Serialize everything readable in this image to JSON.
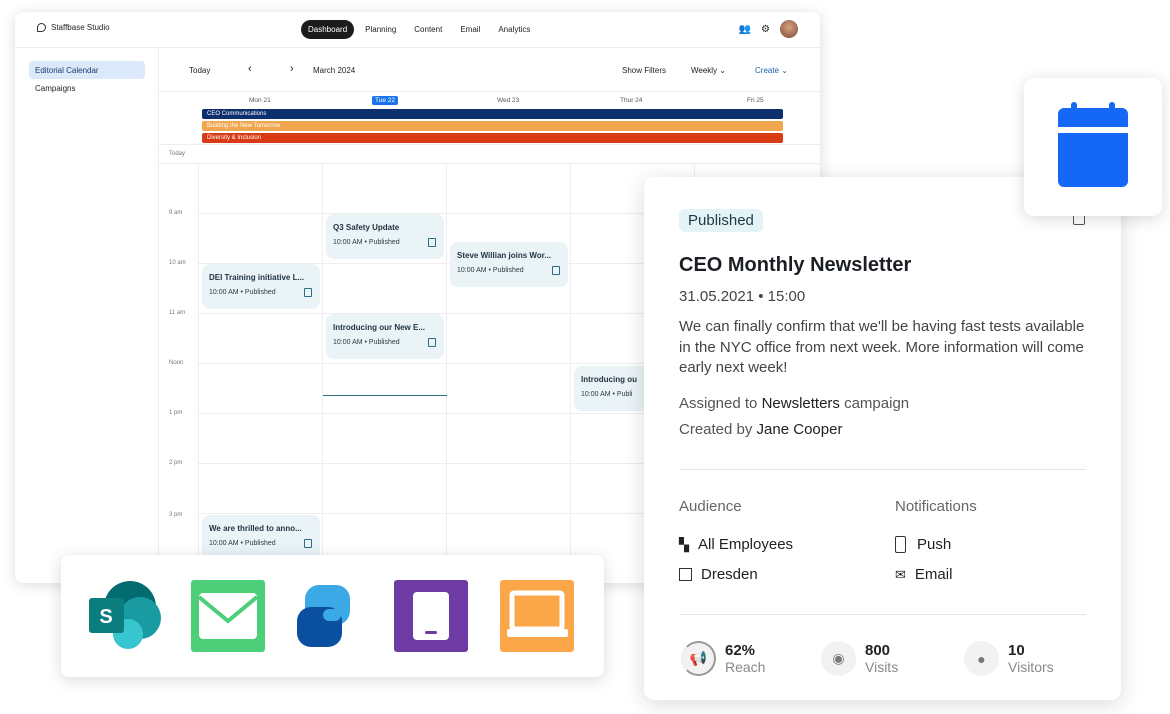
{
  "app": {
    "title": "Staffbase Studio"
  },
  "nav": [
    {
      "label": "Dashboard",
      "active": true
    },
    {
      "label": "Planning"
    },
    {
      "label": "Content"
    },
    {
      "label": "Email"
    },
    {
      "label": "Analytics"
    }
  ],
  "topicons": [
    "people-icon",
    "gear-icon",
    "avatar"
  ],
  "sidebar": {
    "items": [
      {
        "label": "Editorial Calendar",
        "active": true
      },
      {
        "label": "Campaigns"
      }
    ]
  },
  "toolbar": {
    "today": "Today",
    "month": "March 2024",
    "filters": "Show Filters",
    "view": "Weekly",
    "create": "Create"
  },
  "days": [
    "Mon 21",
    "Tue 22",
    "Wed 23",
    "Thur 24",
    "Fri 25"
  ],
  "campaigns": [
    {
      "label": "CEO Communications",
      "color": "#0d2f6e"
    },
    {
      "label": "Building the New Tomorrow",
      "color": "#f0a64f"
    },
    {
      "label": "Diversity & Inclusion",
      "color": "#d83a14"
    }
  ],
  "times": [
    "Today",
    "9 am",
    "10 am",
    "11 am",
    "Noon",
    "1 pm",
    "2 pm",
    "3 pm"
  ],
  "events": [
    {
      "title": "Q3 Safety Update",
      "meta": "10:00 AM • Published"
    },
    {
      "title": "Steve Willian joins Wor...",
      "meta": "10:00 AM • Published"
    },
    {
      "title": "DEI Training initiative L...",
      "meta": "10:00 AM • Published"
    },
    {
      "title": "Introducing our New E...",
      "meta": "10:00 AM • Published"
    },
    {
      "title": "Introducing ou",
      "meta": "10:00 AM • Publi"
    },
    {
      "title": "We are thrilled to anno...",
      "meta": "10:00 AM • Published"
    }
  ],
  "detail": {
    "status": "Published",
    "title": "CEO Monthly Newsletter",
    "date": "31.05.2021 • 15:00",
    "body": "We can finally confirm that we'll be having fast tests available in the NYC office from next week. More information will come early next week!",
    "assigned_prefix": "Assigned to",
    "campaign": "Newsletters",
    "assigned_suffix": "campaign",
    "created_prefix": "Created by",
    "author": "Jane Cooper",
    "audience_label": "Audience",
    "audience": [
      "All Employees",
      "Dresden"
    ],
    "notifications_label": "Notifications",
    "notifications": [
      "Push",
      "Email"
    ],
    "stats": [
      {
        "value": "62%",
        "label": "Reach",
        "icon": "megaphone-icon",
        "progress": 62
      },
      {
        "value": "800",
        "label": "Visits",
        "icon": "eye-icon"
      },
      {
        "value": "10",
        "label": "Visitors",
        "icon": "person-icon"
      }
    ]
  },
  "integrations": [
    "sharepoint-icon",
    "email-icon",
    "viva-icon",
    "mobile-app-icon",
    "intranet-laptop-icon"
  ],
  "colors": {
    "accent": "#1a73e8",
    "calendar": "#1468f5",
    "event_bg": "#eaf3f6"
  }
}
